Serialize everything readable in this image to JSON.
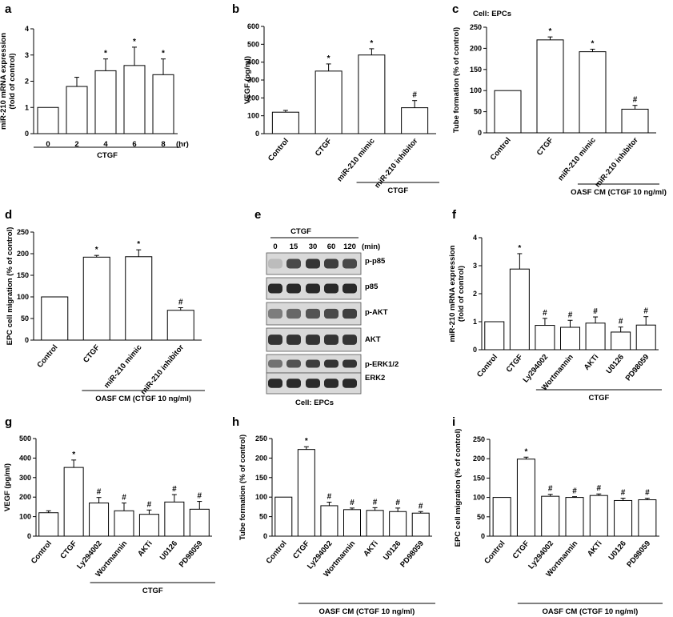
{
  "figure": {
    "panels": [
      "a",
      "b",
      "c",
      "d",
      "e",
      "f",
      "g",
      "h",
      "i"
    ]
  },
  "chart_data": [
    {
      "id": "a",
      "type": "bar",
      "label": "a",
      "ylabel": "miR-210 mRNA expression\n(fold of control)",
      "ylim": [
        0,
        4
      ],
      "yticks": [
        0,
        1,
        2,
        3,
        4
      ],
      "categories": [
        "0",
        "2",
        "4",
        "6",
        "8"
      ],
      "unit_suffix": "(hr)",
      "values": [
        1.0,
        1.8,
        2.4,
        2.6,
        2.25
      ],
      "errors": [
        0,
        0.35,
        0.45,
        0.7,
        0.6
      ],
      "marks": [
        "",
        "",
        "*",
        "*",
        "*"
      ],
      "group_label": "CTGF",
      "group_from": 0,
      "group_to": 4,
      "panel_title": "",
      "angled": false
    },
    {
      "id": "b",
      "type": "bar",
      "label": "b",
      "ylabel": "VEGF (pg/ml)",
      "ylim": [
        0,
        600
      ],
      "yticks": [
        0,
        100,
        200,
        300,
        400,
        500,
        600
      ],
      "categories": [
        "Control",
        "CTGF",
        "miR-210 mimic",
        "miR-210 inhibitor"
      ],
      "values": [
        120,
        350,
        440,
        145
      ],
      "errors": [
        10,
        40,
        35,
        40
      ],
      "marks": [
        "",
        "*",
        "*",
        "#"
      ],
      "group_label": "CTGF",
      "group_from": 2,
      "group_to": 3,
      "panel_title": "",
      "angled": true
    },
    {
      "id": "c",
      "type": "bar",
      "label": "c",
      "ylabel": "Tube formation (% of control)",
      "ylim": [
        0,
        250
      ],
      "yticks": [
        0,
        50,
        100,
        150,
        200,
        250
      ],
      "categories": [
        "Control",
        "CTGF",
        "miR-210 mimic",
        "miR-210 inhibitor"
      ],
      "values": [
        100,
        220,
        192,
        56
      ],
      "errors": [
        0,
        7,
        6,
        9
      ],
      "marks": [
        "",
        "*",
        "*",
        "#"
      ],
      "group_label": "OASF CM (CTGF 10 ng/ml)",
      "group_from": 2,
      "group_to": 3,
      "panel_title": "Cell: EPCs",
      "angled": true
    },
    {
      "id": "d",
      "type": "bar",
      "label": "d",
      "ylabel": "EPC cell migration (% of control)",
      "ylim": [
        0,
        250
      ],
      "yticks": [
        0,
        50,
        100,
        150,
        200,
        250
      ],
      "categories": [
        "Control",
        "CTGF",
        "miR-210 mimic",
        "miR-210 inhibitor"
      ],
      "values": [
        100,
        192,
        193,
        69
      ],
      "errors": [
        0,
        4,
        16,
        6
      ],
      "marks": [
        "",
        "*",
        "*",
        "#"
      ],
      "group_label": "OASF CM (CTGF 10 ng/ml)",
      "group_from": 1,
      "group_to": 3,
      "panel_title": "",
      "angled": true
    },
    {
      "id": "f",
      "type": "bar",
      "label": "f",
      "ylabel": "miR-210 mRNA expression\n(fold of control)",
      "ylim": [
        0,
        4
      ],
      "yticks": [
        0,
        1,
        2,
        3,
        4
      ],
      "categories": [
        "Control",
        "CTGF",
        "Ly294002",
        "Wortmannin",
        "AKTi",
        "U0126",
        "PD98059"
      ],
      "values": [
        1.0,
        2.88,
        0.87,
        0.8,
        0.95,
        0.63,
        0.88
      ],
      "errors": [
        0,
        0.55,
        0.25,
        0.25,
        0.22,
        0.18,
        0.3
      ],
      "marks": [
        "",
        "*",
        "#",
        "#",
        "#",
        "#",
        "#"
      ],
      "group_label": "CTGF",
      "group_from": 2,
      "group_to": 6,
      "panel_title": "",
      "angled": true
    },
    {
      "id": "g",
      "type": "bar",
      "label": "g",
      "ylabel": "VEGF (pg/ml)",
      "ylim": [
        0,
        500
      ],
      "yticks": [
        0,
        100,
        200,
        300,
        400,
        500
      ],
      "categories": [
        "Control",
        "CTGF",
        "Ly294002",
        "Wortmannin",
        "AKTi",
        "U0126",
        "PD98059"
      ],
      "values": [
        120,
        352,
        170,
        130,
        112,
        175,
        138
      ],
      "errors": [
        10,
        38,
        28,
        40,
        22,
        38,
        40
      ],
      "marks": [
        "",
        "*",
        "#",
        "#",
        "#",
        "#",
        "#"
      ],
      "group_label": "CTGF",
      "group_from": 2,
      "group_to": 6,
      "panel_title": "",
      "angled": true
    },
    {
      "id": "h",
      "type": "bar",
      "label": "h",
      "ylabel": "Tube formation (% of control)",
      "ylim": [
        0,
        250
      ],
      "yticks": [
        0,
        50,
        100,
        150,
        200,
        250
      ],
      "categories": [
        "Control",
        "CTGF",
        "Ly294002",
        "Wortmannin",
        "AKTi",
        "U0126",
        "PD98059"
      ],
      "values": [
        100,
        222,
        78,
        68,
        66,
        63,
        59
      ],
      "errors": [
        0,
        7,
        9,
        4,
        7,
        9,
        4
      ],
      "marks": [
        "",
        "*",
        "#",
        "#",
        "#",
        "#",
        "#"
      ],
      "group_label": "OASF CM (CTGF 10 ng/ml)",
      "group_from": 1,
      "group_to": 6,
      "panel_title": "",
      "angled": true
    },
    {
      "id": "i",
      "type": "bar",
      "label": "i",
      "ylabel": "EPC cell migration (% of control)",
      "ylim": [
        0,
        250
      ],
      "yticks": [
        0,
        50,
        100,
        150,
        200,
        250
      ],
      "categories": [
        "Control",
        "CTGF",
        "Ly294002",
        "Wortmannin",
        "AKTi",
        "U0126",
        "PD98059"
      ],
      "values": [
        100,
        199,
        103,
        100,
        105,
        92,
        94
      ],
      "errors": [
        0,
        5,
        5,
        2,
        4,
        6,
        4
      ],
      "marks": [
        "",
        "*",
        "#",
        "#",
        "#",
        "#",
        "#"
      ],
      "group_label": "OASF CM (CTGF 10 ng/ml)",
      "group_from": 1,
      "group_to": 6,
      "panel_title": "",
      "angled": true
    }
  ],
  "western_blot": {
    "label": "e",
    "treatment": "CTGF",
    "time_points": [
      "0",
      "15",
      "30",
      "60",
      "120"
    ],
    "time_unit": "(min)",
    "proteins": [
      "p-p85",
      "p85",
      "p-AKT",
      "AKT",
      "p-ERK1/2",
      "ERK2"
    ],
    "band_intensity": [
      [
        0.2,
        0.75,
        0.85,
        0.8,
        0.75
      ],
      [
        0.9,
        0.9,
        0.9,
        0.9,
        0.9
      ],
      [
        0.5,
        0.6,
        0.7,
        0.75,
        0.8
      ],
      [
        0.85,
        0.85,
        0.85,
        0.85,
        0.85
      ],
      [
        0.55,
        0.7,
        0.8,
        0.85,
        0.85
      ],
      [
        0.9,
        0.9,
        0.9,
        0.9,
        0.9
      ]
    ],
    "footer": "Cell: EPCs"
  }
}
